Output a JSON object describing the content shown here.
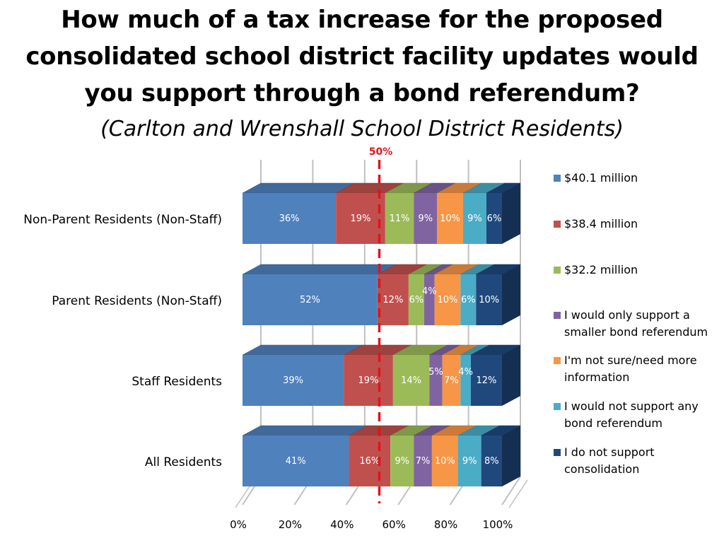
{
  "title": "How much of a tax increase for the proposed consolidated school district facility updates would you support through a bond referendum?",
  "subtitle": "(Carlton and Wrenshall School District Residents)",
  "chart_data": {
    "type": "bar",
    "orientation": "horizontal",
    "stacked": true,
    "style": "3d",
    "categories": [
      "Non-Parent Residents (Non-Staff)",
      "Parent Residents (Non-Staff)",
      "Staff Residents",
      "All Residents"
    ],
    "series": [
      {
        "name": "$40.1 million",
        "color": "#4f81bd",
        "values": [
          36,
          52,
          39,
          41
        ]
      },
      {
        "name": "$38.4 million",
        "color": "#c0504d",
        "values": [
          19,
          12,
          19,
          16
        ]
      },
      {
        "name": "$32.2 million",
        "color": "#9bbb59",
        "values": [
          11,
          6,
          14,
          9
        ]
      },
      {
        "name": "I would only support a smaller bond referendum",
        "color": "#8064a2",
        "values": [
          9,
          4,
          5,
          7
        ]
      },
      {
        "name": "I'm not sure/need more information",
        "color": "#f79646",
        "values": [
          10,
          10,
          7,
          10
        ]
      },
      {
        "name": "I would not support any bond referendum",
        "color": "#4bacc6",
        "values": [
          9,
          6,
          4,
          9
        ]
      },
      {
        "name": "I do not support consolidation",
        "color": "#1f497d",
        "values": [
          6,
          10,
          12,
          8
        ]
      }
    ],
    "xlim": [
      0,
      100
    ],
    "xticks": [
      "0%",
      "20%",
      "40%",
      "60%",
      "80%",
      "100%"
    ],
    "reference_line": {
      "value": 50,
      "label": "50%",
      "color": "#e0141e"
    },
    "legend_position": "right",
    "grid": true
  }
}
